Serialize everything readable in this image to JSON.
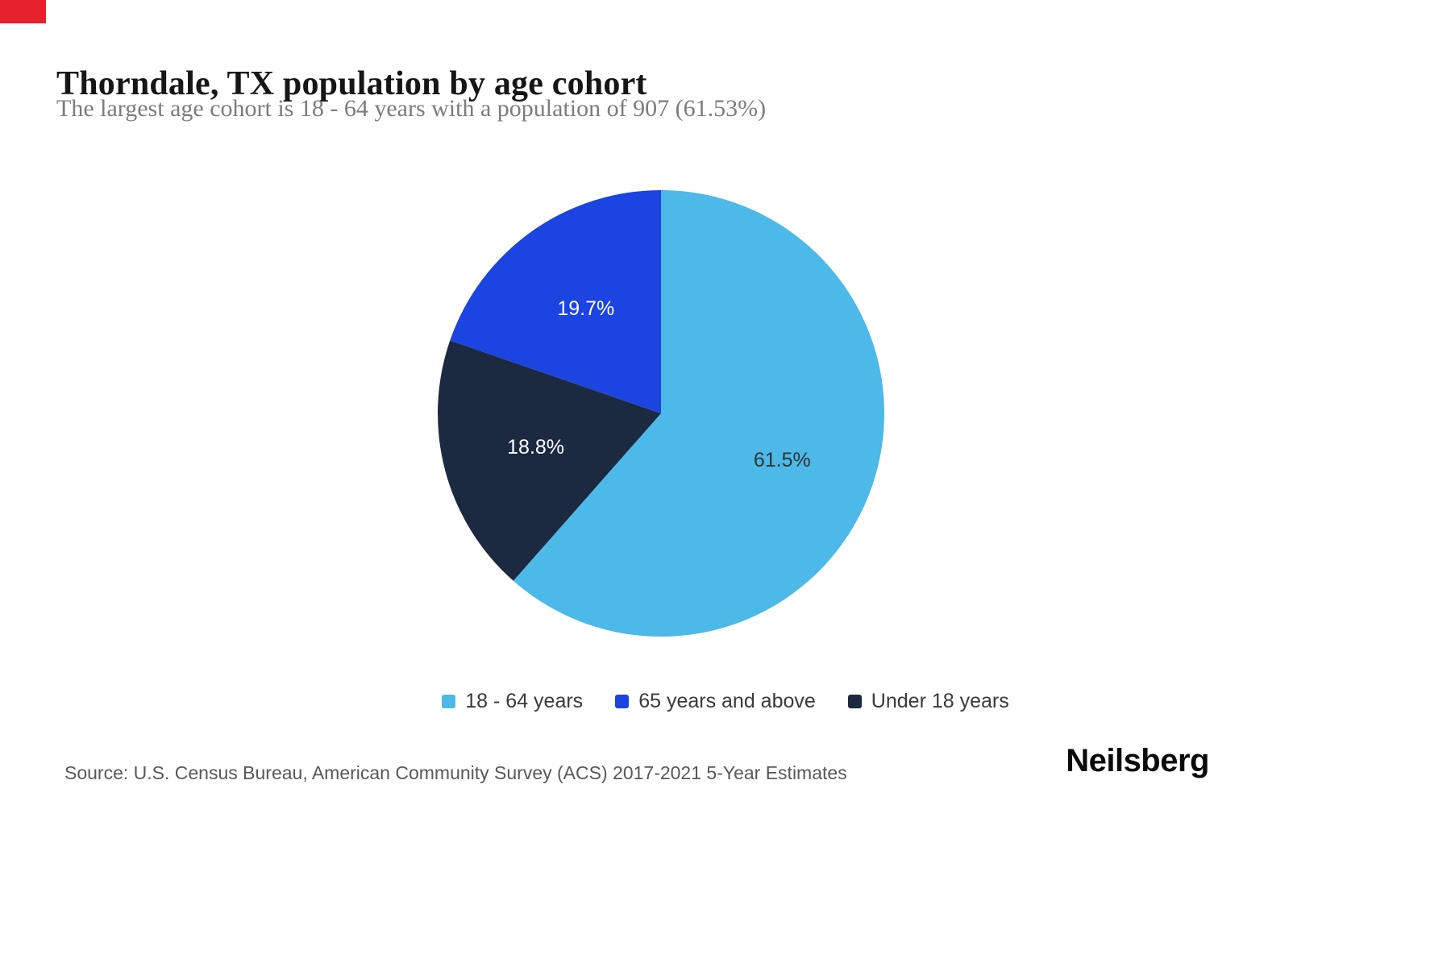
{
  "page": {
    "title": "Thorndale, TX population by age cohort",
    "subtitle": "The largest age cohort is 18 - 64 years with a population of 907 (61.53%)",
    "source": "Source: U.S. Census Bureau, American Community Survey (ACS) 2017-2021 5-Year Estimates",
    "logo": "Neilsberg"
  },
  "colors": {
    "corner_marker_red": "#e8212e",
    "title_text": "#161616",
    "subtitle_text": "#7c7c7c",
    "source_text": "#585858"
  },
  "chart_data": {
    "type": "pie",
    "title": "Thorndale, TX population by age cohort",
    "subtitle": "The largest age cohort is 18 - 64 years with a population of 907 (61.53%)",
    "direction": "clockwise",
    "start_angle_deg": 0,
    "legend_position": "bottom",
    "slices": [
      {
        "label": "18 - 64 years",
        "value": 61.5,
        "display": "61.5%",
        "population": 907,
        "color": "#4cb9e8",
        "text_color": "#333333"
      },
      {
        "label": "Under 18 years",
        "value": 18.8,
        "display": "18.8%",
        "color": "#1b2a41",
        "text_color": "#ffffff"
      },
      {
        "label": "65 years and above",
        "value": 19.7,
        "display": "19.7%",
        "color": "#1c44e0",
        "text_color": "#ffffff"
      }
    ],
    "legend": [
      {
        "label": "18 - 64 years",
        "color": "#4cb9e8"
      },
      {
        "label": "65 years and above",
        "color": "#1c44e0"
      },
      {
        "label": "Under 18 years",
        "color": "#1b2a41"
      }
    ]
  }
}
